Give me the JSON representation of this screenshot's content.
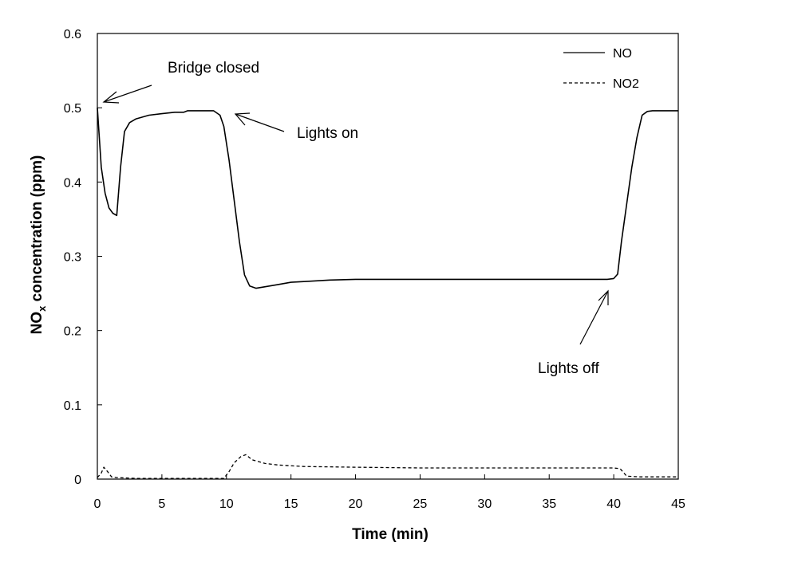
{
  "chart_data": {
    "type": "line",
    "title": "",
    "xlabel": "Time (min)",
    "ylabel": {
      "main": "NO",
      "subscript": "x",
      "rest": " concentration (ppm)"
    },
    "xlim": [
      0,
      45
    ],
    "ylim": [
      0,
      0.6
    ],
    "x_ticks": [
      "0",
      "5",
      "10",
      "15",
      "20",
      "25",
      "30",
      "35",
      "40",
      "45"
    ],
    "y_ticks": [
      "0",
      "0.1",
      "0.2",
      "0.3",
      "0.4",
      "0.5",
      "0.6"
    ],
    "grid": false,
    "legend_position": "top-right",
    "series": [
      {
        "name": "NO",
        "line_style": "solid",
        "color": "#000000",
        "x": [
          0,
          0.3,
          0.6,
          0.9,
          1.2,
          1.5,
          1.8,
          2.1,
          2.5,
          3,
          4,
          5,
          6,
          6.7,
          7,
          8,
          9,
          9.5,
          9.8,
          10.2,
          10.6,
          11,
          11.4,
          11.8,
          12.3,
          13,
          14,
          15,
          16,
          18,
          20,
          25,
          30,
          35,
          38,
          39.5,
          40,
          40.3,
          40.6,
          41,
          41.4,
          41.8,
          42.2,
          42.6,
          43,
          44,
          45
        ],
        "y": [
          0.5,
          0.42,
          0.385,
          0.365,
          0.358,
          0.355,
          0.42,
          0.468,
          0.48,
          0.485,
          0.49,
          0.492,
          0.494,
          0.494,
          0.496,
          0.496,
          0.496,
          0.49,
          0.475,
          0.43,
          0.375,
          0.32,
          0.275,
          0.26,
          0.257,
          0.259,
          0.262,
          0.265,
          0.266,
          0.268,
          0.269,
          0.269,
          0.269,
          0.269,
          0.269,
          0.269,
          0.27,
          0.276,
          0.32,
          0.37,
          0.42,
          0.46,
          0.49,
          0.495,
          0.496,
          0.496,
          0.496
        ]
      },
      {
        "name": "NO2",
        "line_style": "dashed",
        "color": "#000000",
        "x": [
          0,
          0.3,
          0.5,
          0.8,
          1.1,
          1.5,
          3,
          5,
          8,
          9.8,
          10.2,
          10.6,
          11.1,
          11.5,
          12,
          13,
          14,
          16,
          20,
          25,
          30,
          35,
          40,
          40.5,
          41,
          42,
          45
        ],
        "y": [
          0.002,
          0.008,
          0.016,
          0.01,
          0.003,
          0.002,
          0.001,
          0.001,
          0.001,
          0.001,
          0.01,
          0.022,
          0.03,
          0.033,
          0.026,
          0.021,
          0.019,
          0.017,
          0.016,
          0.015,
          0.015,
          0.015,
          0.015,
          0.014,
          0.004,
          0.003,
          0.003
        ]
      }
    ],
    "annotations": [
      {
        "text": "Bridge closed",
        "x": 0,
        "y": 0.5
      },
      {
        "text": "Lights on",
        "x": 10.5,
        "y": 0.49
      },
      {
        "text": "Lights off",
        "x": 39.5,
        "y": 0.255
      }
    ]
  }
}
